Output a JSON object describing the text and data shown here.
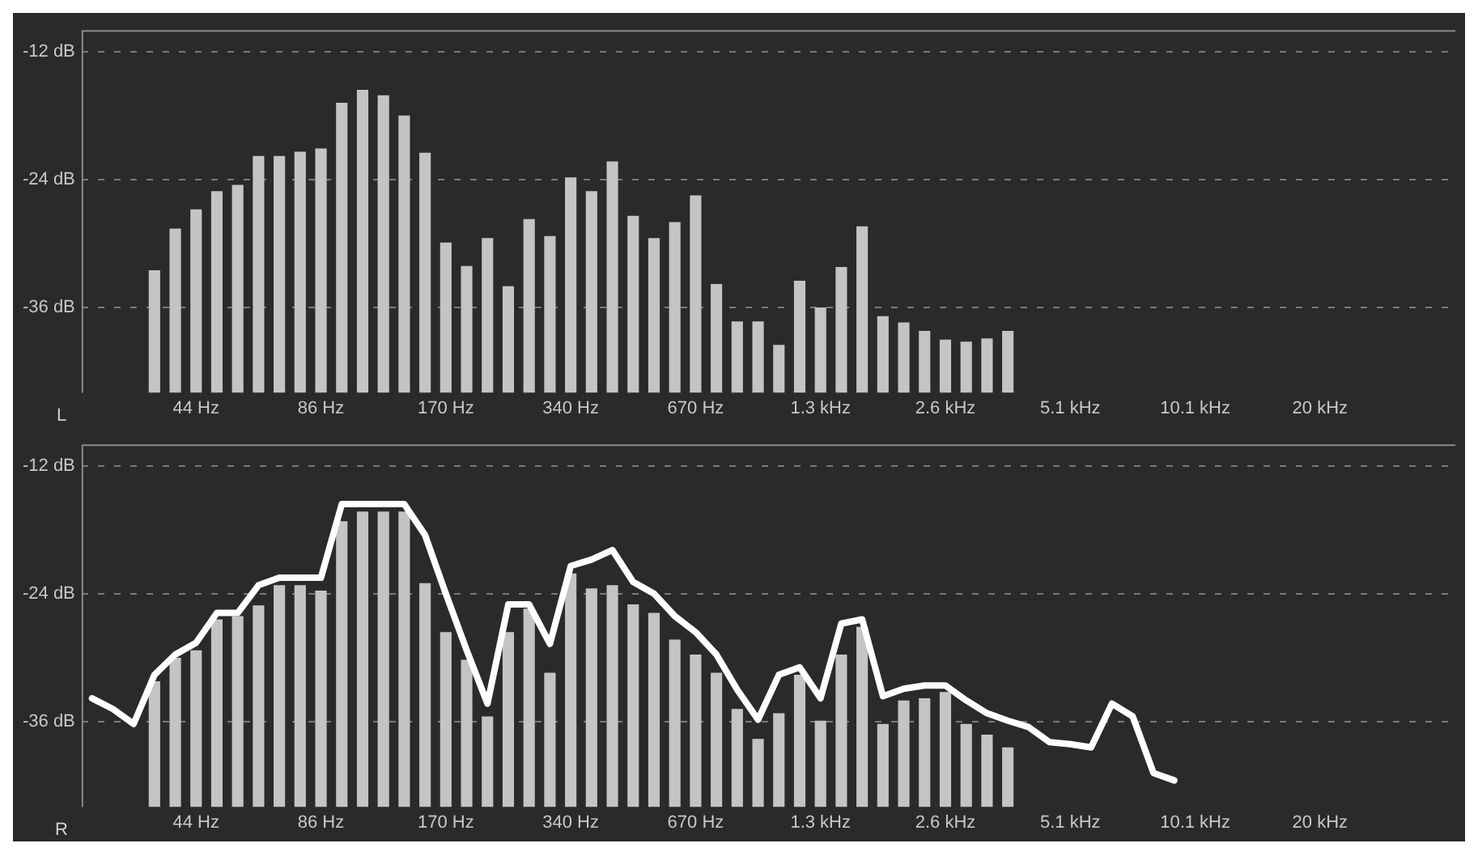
{
  "chart_data": [
    {
      "type": "bar",
      "annotations": [
        "L"
      ],
      "categories": [
        null,
        null,
        null,
        null,
        null,
        "44 Hz",
        null,
        null,
        null,
        null,
        null,
        "86 Hz",
        null,
        null,
        null,
        null,
        null,
        "170 Hz",
        null,
        null,
        null,
        null,
        null,
        "340 Hz",
        null,
        null,
        null,
        null,
        null,
        "670 Hz",
        null,
        null,
        null,
        null,
        null,
        "1.3 kHz",
        null,
        null,
        null,
        null,
        null,
        "2.6 kHz",
        null,
        null,
        null,
        null,
        null,
        "5.1 kHz",
        null,
        null,
        null,
        null,
        null,
        "10.1 kHz",
        null,
        null,
        null,
        null,
        null,
        "20 kHz",
        null,
        null,
        null,
        null,
        null,
        null
      ],
      "base": [
        null,
        null,
        null,
        -44,
        -44,
        -44,
        -44,
        -44,
        -44,
        -44,
        -44,
        -44,
        -44,
        -44,
        -44,
        -44,
        -44,
        -44,
        -44,
        -44,
        -44,
        -44,
        -44,
        -44,
        -44,
        -44,
        -44,
        -44,
        -44,
        -44,
        -44,
        -44,
        -44,
        -44,
        -44,
        -44,
        -44,
        -44,
        -44,
        -44,
        -44,
        -44,
        -44,
        -44,
        -44,
        null,
        null,
        null,
        null,
        null,
        null,
        null,
        null,
        null,
        null,
        null,
        null,
        null,
        null,
        null,
        null,
        null,
        null,
        null,
        null,
        null
      ],
      "color": "#c4c4c4",
      "values": [
        null,
        null,
        null,
        11.5,
        15.4,
        17.2,
        18.9,
        19.5,
        22.2,
        22.2,
        22.6,
        22.9,
        27.2,
        28.4,
        27.9,
        26.0,
        22.5,
        14.1,
        11.9,
        14.5,
        10.0,
        16.3,
        14.7,
        20.2,
        18.9,
        21.7,
        16.6,
        14.5,
        16.0,
        18.5,
        10.2,
        6.7,
        6.7,
        4.5,
        10.5,
        8.0,
        11.8,
        15.6,
        7.2,
        6.6,
        5.8,
        5.0,
        4.8,
        5.1,
        5.8,
        null,
        null,
        null,
        null,
        null,
        null,
        null,
        null,
        null,
        null,
        null,
        null,
        null,
        null,
        null,
        null,
        null,
        null,
        null,
        null,
        null
      ],
      "ylim": [
        -44,
        -10
      ],
      "yticks": [
        {
          "value": -36,
          "label": "-36 dB"
        },
        {
          "value": -24,
          "label": "-24 dB"
        },
        {
          "value": -12,
          "label": "-12 dB"
        }
      ],
      "grid": "y",
      "legend": false
    },
    {
      "type": "bar",
      "annotations": [
        "R"
      ],
      "categories": [
        null,
        null,
        null,
        null,
        null,
        "44 Hz",
        null,
        null,
        null,
        null,
        null,
        "86 Hz",
        null,
        null,
        null,
        null,
        null,
        "170 Hz",
        null,
        null,
        null,
        null,
        null,
        "340 Hz",
        null,
        null,
        null,
        null,
        null,
        "670 Hz",
        null,
        null,
        null,
        null,
        null,
        "1.3 kHz",
        null,
        null,
        null,
        null,
        null,
        "2.6 kHz",
        null,
        null,
        null,
        null,
        null,
        "5.1 kHz",
        null,
        null,
        null,
        null,
        null,
        "10.1 kHz",
        null,
        null,
        null,
        null,
        null,
        "20 kHz",
        null,
        null,
        null,
        null,
        null,
        null
      ],
      "series": [
        {
          "color": "#c4c4c4",
          "base": [
            null,
            null,
            null,
            -44,
            -44,
            -44,
            -44,
            -44,
            -44,
            -44,
            -44,
            -44,
            -44,
            -44,
            -44,
            -44,
            -44,
            -44,
            -44,
            -44,
            -44,
            -44,
            -44,
            -44,
            -44,
            -44,
            -44,
            -44,
            -44,
            -44,
            -44,
            -44,
            -44,
            -44,
            -44,
            -44,
            -44,
            -44,
            -44,
            -44,
            -44,
            -44,
            -44,
            -44,
            -44,
            null,
            null,
            null,
            null,
            null,
            null,
            null,
            null,
            null,
            null,
            null,
            null,
            null,
            null,
            null,
            null,
            null,
            null,
            null,
            null,
            null
          ],
          "values": [
            null,
            null,
            null,
            11.8,
            14.0,
            14.7,
            17.6,
            17.9,
            18.9,
            20.8,
            20.8,
            20.3,
            26.8,
            27.7,
            27.7,
            27.7,
            21.0,
            16.4,
            13.8,
            8.5,
            16.4,
            18.6,
            12.6,
            21.9,
            20.5,
            20.8,
            19.0,
            18.2,
            15.7,
            14.3,
            12.6,
            9.2,
            6.4,
            8.8,
            12.4,
            8.1,
            14.3,
            16.9,
            7.8,
            10.0,
            10.2,
            10.8,
            7.8,
            6.8,
            5.6,
            null,
            null,
            null,
            null,
            null,
            null,
            null,
            null,
            null,
            null,
            null,
            null,
            null,
            null,
            null,
            null,
            null,
            null,
            null,
            null,
            null
          ]
        },
        {
          "type": "line",
          "color": "#ffffff",
          "marker": "none",
          "values": [
            -33.8,
            -34.8,
            -36.2,
            -31.6,
            -29.7,
            -28.6,
            -25.8,
            -25.8,
            -23.2,
            -22.5,
            -22.5,
            -22.5,
            -15.6,
            -15.6,
            -15.6,
            -15.6,
            -18.5,
            -24.0,
            -29.3,
            -34.3,
            -25.0,
            -25.0,
            -28.7,
            -21.4,
            -20.8,
            -19.9,
            -22.9,
            -24.0,
            -26.1,
            -27.6,
            -29.7,
            -33.0,
            -35.8,
            -31.6,
            -30.9,
            -33.8,
            -26.8,
            -26.4,
            -33.6,
            -32.9,
            -32.6,
            -32.6,
            -34.0,
            -35.2,
            -35.9,
            -36.5,
            -37.9,
            -38.1,
            -38.4,
            -34.3,
            -35.5,
            -40.8,
            -41.5,
            null,
            null,
            null,
            null,
            null,
            null,
            null,
            null,
            null,
            null,
            null,
            null,
            null
          ]
        }
      ],
      "ylim": [
        -44,
        -10
      ],
      "yticks": [
        {
          "value": -36,
          "label": "-36 dB"
        },
        {
          "value": -24,
          "label": "-24 dB"
        },
        {
          "value": -12,
          "label": "-12 dB"
        }
      ],
      "grid": "y",
      "legend": false
    }
  ]
}
